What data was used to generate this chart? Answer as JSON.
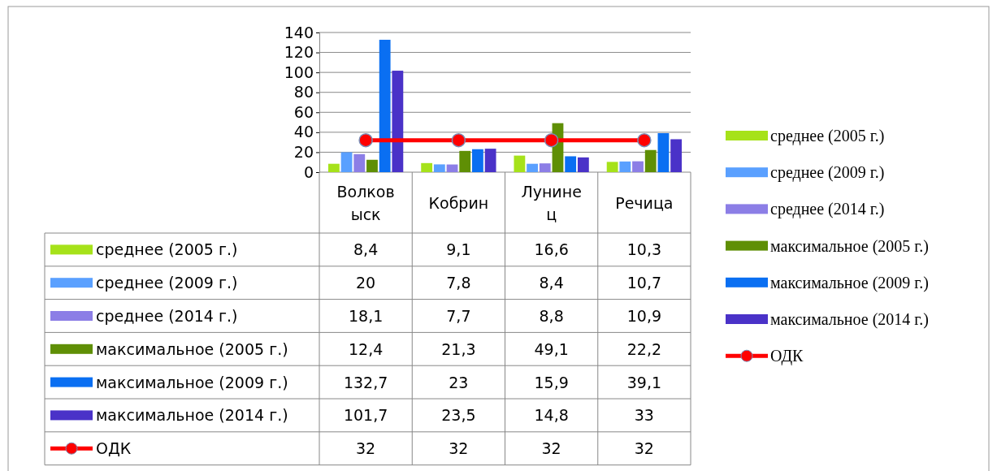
{
  "chart_data": {
    "type": "bar",
    "categories": [
      "Волковыск",
      "Кобрин",
      "Лунинец",
      "Речица"
    ],
    "ylim": [
      0,
      140
    ],
    "yticks": [
      0,
      20,
      40,
      60,
      80,
      100,
      120,
      140
    ],
    "grid": "y",
    "legend": "right",
    "series": [
      {
        "name": "среднее (2005 г.)",
        "color": "#a6e21a",
        "values": [
          8.4,
          9.1,
          16.6,
          10.3
        ],
        "value_labels": [
          "8,4",
          "9,1",
          "16,6",
          "10,3"
        ]
      },
      {
        "name": "среднее (2009 г.)",
        "color": "#5aa0ff",
        "values": [
          20,
          7.8,
          8.4,
          10.7
        ],
        "value_labels": [
          "20",
          "7,8",
          "8,4",
          "10,7"
        ]
      },
      {
        "name": "среднее (2014 г.)",
        "color": "#8c7ee6",
        "values": [
          18.1,
          7.7,
          8.8,
          10.9
        ],
        "value_labels": [
          "18,1",
          "7,7",
          "8,8",
          "10,9"
        ]
      },
      {
        "name": "максимальное (2005 г.)",
        "color": "#5f8f05",
        "values": [
          12.4,
          21.3,
          49.1,
          22.2
        ],
        "value_labels": [
          "12,4",
          "21,3",
          "49,1",
          "22,2"
        ]
      },
      {
        "name": "максимальное (2009 г.)",
        "color": "#0a6ff2",
        "values": [
          132.7,
          23,
          15.9,
          39.1
        ],
        "value_labels": [
          "132,7",
          "23",
          "15,9",
          "39,1"
        ]
      },
      {
        "name": "максимальное (2014 г.)",
        "color": "#4a32c8",
        "values": [
          101.7,
          23.5,
          14.8,
          33
        ],
        "value_labels": [
          "101,7",
          "23,5",
          "14,8",
          "33"
        ]
      },
      {
        "name": "ОДК",
        "type": "line",
        "color": "#ff0000",
        "marker": "circle",
        "values": [
          32,
          32,
          32,
          32
        ],
        "value_labels": [
          "32",
          "32",
          "32",
          "32"
        ]
      }
    ]
  }
}
